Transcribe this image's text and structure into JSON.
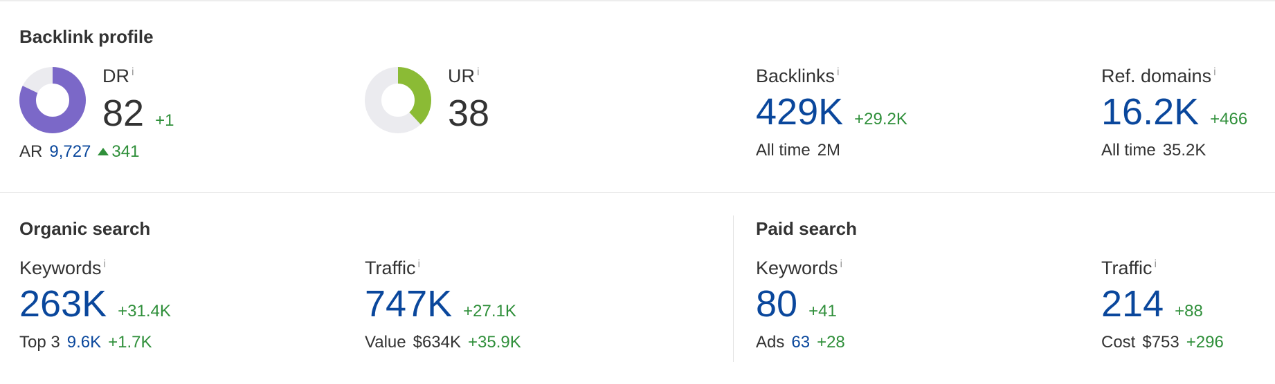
{
  "backlink_profile": {
    "title": "Backlink profile",
    "dr": {
      "label": "DR",
      "value": "82",
      "delta": "+1",
      "score": 82,
      "color": "#7b68c8",
      "track": "#ebebef",
      "ar_label": "AR",
      "ar_value": "9,727",
      "ar_delta": "341"
    },
    "ur": {
      "label": "UR",
      "value": "38",
      "score": 38,
      "color": "#8bbb35",
      "track": "#ebebef"
    },
    "backlinks": {
      "label": "Backlinks",
      "value": "429K",
      "delta": "+29.2K",
      "all_time_label": "All time",
      "all_time_value": "2M"
    },
    "ref_domains": {
      "label": "Ref. domains",
      "value": "16.2K",
      "delta": "+466",
      "all_time_label": "All time",
      "all_time_value": "35.2K"
    }
  },
  "organic_search": {
    "title": "Organic search",
    "keywords": {
      "label": "Keywords",
      "value": "263K",
      "delta": "+31.4K",
      "sub_label": "Top 3",
      "sub_value": "9.6K",
      "sub_delta": "+1.7K"
    },
    "traffic": {
      "label": "Traffic",
      "value": "747K",
      "delta": "+27.1K",
      "sub_label": "Value",
      "sub_value": "$634K",
      "sub_delta": "+35.9K"
    }
  },
  "paid_search": {
    "title": "Paid search",
    "keywords": {
      "label": "Keywords",
      "value": "80",
      "delta": "+41",
      "sub_label": "Ads",
      "sub_value": "63",
      "sub_delta": "+28"
    },
    "traffic": {
      "label": "Traffic",
      "value": "214",
      "delta": "+88",
      "sub_label": "Cost",
      "sub_value": "$753",
      "sub_delta": "+296"
    }
  },
  "info_glyph": "i"
}
